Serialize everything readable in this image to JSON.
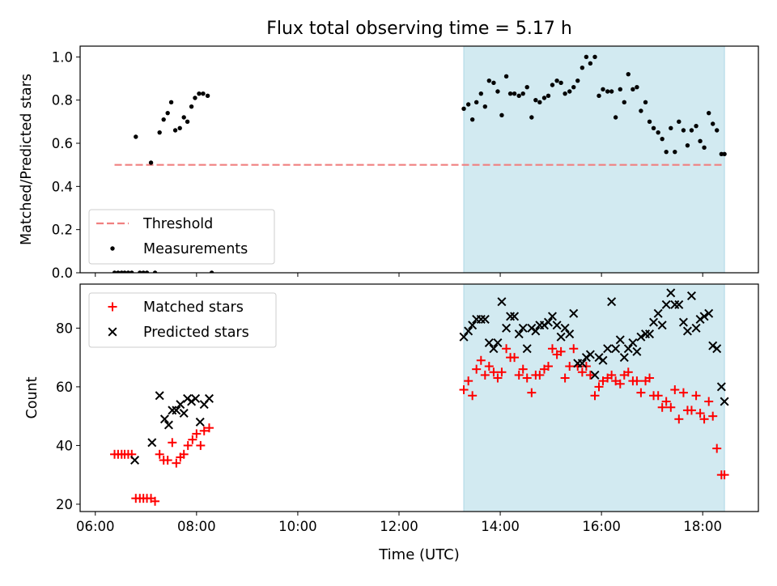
{
  "chart_data": {
    "title": "Flux total observing time = 5.17 h",
    "xlabel": "Time (UTC)",
    "x_ticks": [
      "06:00",
      "08:00",
      "10:00",
      "12:00",
      "14:00",
      "16:00",
      "18:00"
    ],
    "x_tick_hours": [
      6,
      8,
      10,
      12,
      14,
      16,
      18
    ],
    "xlim_hours": [
      5.7,
      19.1
    ],
    "shaded_span_hours": [
      13.28,
      18.43
    ],
    "shaded_color": "#add8e6",
    "panels": [
      {
        "type": "scatter",
        "ylabel": "Matched/Predicted stars",
        "ylim": [
          0,
          1.05
        ],
        "y_ticks": [
          0.0,
          0.2,
          0.4,
          0.6,
          0.8,
          1.0
        ],
        "y_tick_labels": [
          "0.0",
          "0.2",
          "0.4",
          "0.6",
          "0.8",
          "1.0"
        ],
        "legend_position": "lower-left",
        "threshold": {
          "name": "Threshold",
          "value": 0.5,
          "x_range": [
            6.38,
            18.43
          ],
          "color": "#f08080"
        },
        "series": [
          {
            "name": "Measurements",
            "color": "#000000",
            "marker": "dot",
            "x": [
              6.38,
              6.45,
              6.52,
              6.58,
              6.65,
              6.72,
              6.8,
              6.88,
              6.95,
              7.02,
              7.1,
              7.18,
              7.27,
              7.35,
              7.43,
              7.5,
              7.58,
              7.67,
              7.75,
              7.82,
              7.9,
              7.97,
              8.05,
              8.13,
              8.22,
              8.3,
              13.28,
              13.37,
              13.45,
              13.53,
              13.62,
              13.7,
              13.78,
              13.87,
              13.95,
              14.03,
              14.12,
              14.2,
              14.28,
              14.37,
              14.45,
              14.53,
              14.62,
              14.7,
              14.78,
              14.87,
              14.95,
              15.03,
              15.12,
              15.2,
              15.28,
              15.37,
              15.45,
              15.53,
              15.62,
              15.7,
              15.78,
              15.87,
              15.95,
              16.03,
              16.12,
              16.2,
              16.28,
              16.37,
              16.45,
              16.53,
              16.62,
              16.7,
              16.78,
              16.87,
              16.95,
              17.03,
              17.12,
              17.2,
              17.28,
              17.37,
              17.45,
              17.53,
              17.62,
              17.7,
              17.78,
              17.87,
              17.95,
              18.03,
              18.12,
              18.2,
              18.28,
              18.37,
              18.43
            ],
            "y": [
              0.0,
              0.0,
              0.0,
              0.0,
              0.0,
              0.0,
              0.63,
              0.0,
              0.0,
              0.0,
              0.51,
              0.0,
              0.65,
              0.71,
              0.74,
              0.79,
              0.66,
              0.67,
              0.72,
              0.7,
              0.77,
              0.81,
              0.83,
              0.83,
              0.82,
              0.0,
              0.76,
              0.78,
              0.71,
              0.79,
              0.83,
              0.77,
              0.89,
              0.88,
              0.84,
              0.73,
              0.91,
              0.83,
              0.83,
              0.82,
              0.83,
              0.86,
              0.72,
              0.8,
              0.79,
              0.81,
              0.82,
              0.87,
              0.89,
              0.88,
              0.83,
              0.84,
              0.86,
              0.89,
              0.95,
              1.0,
              0.97,
              1.0,
              0.82,
              0.85,
              0.84,
              0.84,
              0.72,
              0.85,
              0.79,
              0.92,
              0.85,
              0.86,
              0.75,
              0.79,
              0.7,
              0.67,
              0.65,
              0.62,
              0.56,
              0.67,
              0.56,
              0.7,
              0.66,
              0.59,
              0.66,
              0.68,
              0.61,
              0.58,
              0.74,
              0.69,
              0.66,
              0.55,
              0.55
            ]
          }
        ]
      },
      {
        "type": "scatter",
        "ylabel": "Count",
        "ylim": [
          17.5,
          95
        ],
        "y_ticks": [
          20,
          40,
          60,
          80
        ],
        "y_tick_labels": [
          "20",
          "40",
          "60",
          "80"
        ],
        "legend_position": "upper-left",
        "series": [
          {
            "name": "Matched stars",
            "color": "#ff0000",
            "marker": "plus",
            "x": [
              6.38,
              6.45,
              6.52,
              6.58,
              6.65,
              6.72,
              6.8,
              6.88,
              6.95,
              7.02,
              7.1,
              7.18,
              7.27,
              7.35,
              7.43,
              7.52,
              7.6,
              7.68,
              7.75,
              7.83,
              7.92,
              8.0,
              8.08,
              8.15,
              8.25,
              13.28,
              13.37,
              13.45,
              13.53,
              13.62,
              13.7,
              13.78,
              13.87,
              13.95,
              14.03,
              14.12,
              14.2,
              14.28,
              14.37,
              14.45,
              14.53,
              14.62,
              14.7,
              14.78,
              14.87,
              14.95,
              15.03,
              15.12,
              15.2,
              15.28,
              15.37,
              15.45,
              15.53,
              15.62,
              15.7,
              15.78,
              15.87,
              15.95,
              16.03,
              16.12,
              16.2,
              16.28,
              16.37,
              16.45,
              16.53,
              16.62,
              16.7,
              16.78,
              16.87,
              16.95,
              17.03,
              17.12,
              17.2,
              17.28,
              17.37,
              17.45,
              17.53,
              17.62,
              17.7,
              17.78,
              17.87,
              17.95,
              18.03,
              18.12,
              18.2,
              18.28,
              18.37,
              18.43
            ],
            "y": [
              37,
              37,
              37,
              37,
              37,
              37,
              22,
              22,
              22,
              22,
              22,
              21,
              37,
              35,
              35,
              41,
              34,
              36,
              37,
              40,
              42,
              44,
              40,
              45,
              46,
              59,
              62,
              57,
              66,
              69,
              64,
              67,
              65,
              63,
              65,
              73,
              70,
              70,
              64,
              66,
              63,
              58,
              64,
              64,
              66,
              67,
              73,
              71,
              72,
              63,
              67,
              73,
              67,
              65,
              67,
              64,
              57,
              60,
              62,
              63,
              64,
              62,
              61,
              64,
              65,
              62,
              62,
              58,
              62,
              63,
              57,
              57,
              53,
              55,
              53,
              59,
              49,
              58,
              52,
              52,
              57,
              51,
              49,
              55,
              50,
              39,
              30,
              30
            ],
            "note_omit": true
          },
          {
            "name": "Predicted stars",
            "color": "#000000",
            "marker": "x",
            "x": [
              6.78,
              7.12,
              7.27,
              7.37,
              7.45,
              7.52,
              7.6,
              7.68,
              7.75,
              7.82,
              7.9,
              7.98,
              8.07,
              8.15,
              8.25,
              13.28,
              13.37,
              13.45,
              13.53,
              13.62,
              13.7,
              13.78,
              13.87,
              13.95,
              14.03,
              14.12,
              14.2,
              14.28,
              14.37,
              14.45,
              14.53,
              14.62,
              14.7,
              14.78,
              14.87,
              14.95,
              15.03,
              15.12,
              15.2,
              15.28,
              15.37,
              15.45,
              15.53,
              15.62,
              15.7,
              15.78,
              15.87,
              15.95,
              16.03,
              16.12,
              16.2,
              16.28,
              16.37,
              16.45,
              16.53,
              16.62,
              16.7,
              16.78,
              16.87,
              16.95,
              17.03,
              17.12,
              17.2,
              17.28,
              17.37,
              17.45,
              17.53,
              17.62,
              17.7,
              17.78,
              17.87,
              17.95,
              18.03,
              18.12,
              18.2,
              18.28,
              18.37,
              18.43
            ],
            "y": [
              35,
              41,
              57,
              49,
              47,
              52,
              52,
              54,
              51,
              56,
              55,
              56,
              48,
              54,
              56,
              77,
              79,
              81,
              83,
              83,
              83,
              75,
              73,
              75,
              89,
              80,
              84,
              84,
              78,
              80,
              73,
              80,
              79,
              81,
              81,
              82,
              84,
              81,
              77,
              80,
              78,
              85,
              68,
              68,
              70,
              71,
              64,
              70,
              69,
              73,
              89,
              73,
              76,
              70,
              73,
              75,
              72,
              77,
              78,
              78,
              82,
              85,
              81,
              88,
              92,
              88,
              88,
              82,
              79,
              91,
              80,
              83,
              84,
              85,
              74,
              73,
              60,
              55
            ]
          }
        ]
      }
    ]
  }
}
